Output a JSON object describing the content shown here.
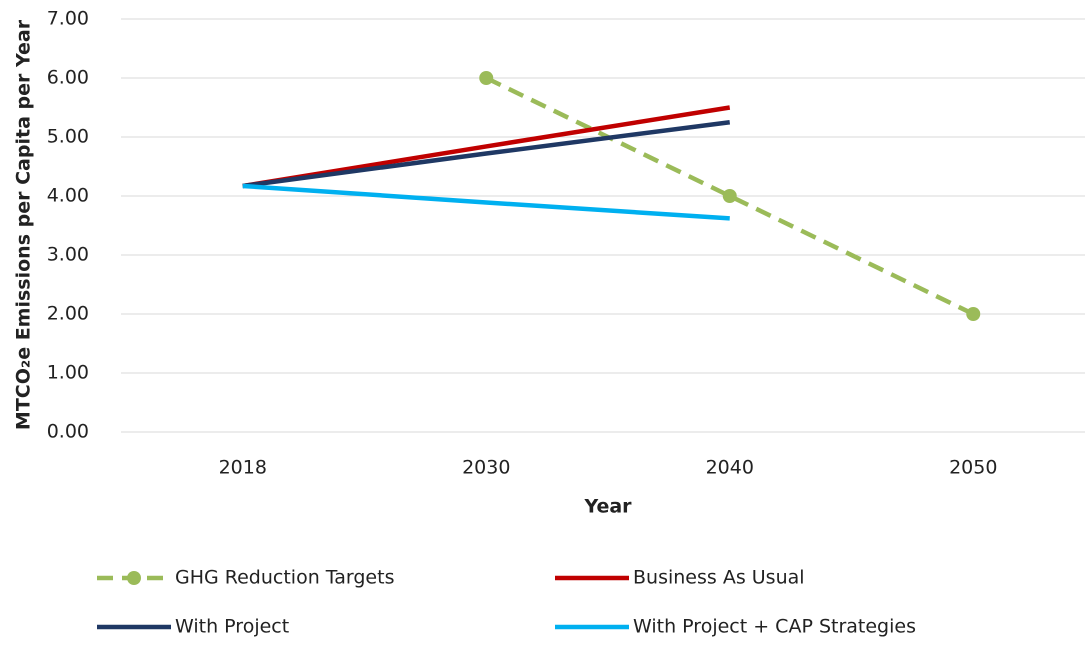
{
  "chart_data": {
    "type": "line",
    "x_label": "Year",
    "y_label": "MTCO₂e Emissions per Capita per Year",
    "categories": [
      "2018",
      "2030",
      "2040",
      "2050"
    ],
    "series": [
      {
        "name": "GHG Reduction Targets",
        "color": "#9bbb59",
        "dashed": true,
        "markers": true,
        "values": [
          null,
          6.0,
          4.0,
          2.0
        ]
      },
      {
        "name": "Business As Usual",
        "color": "#c00000",
        "values": [
          4.17,
          4.84,
          5.5,
          null
        ]
      },
      {
        "name": "With Project",
        "color": "#1f3864",
        "values": [
          4.17,
          4.72,
          5.25,
          null
        ]
      },
      {
        "name": "With Project + CAP Strategies",
        "color": "#00b0f0",
        "values": [
          4.17,
          3.89,
          3.62,
          null
        ]
      }
    ],
    "ylim": [
      0,
      7
    ],
    "yticks": [
      {
        "value": 0,
        "label": "0.00"
      },
      {
        "value": 1,
        "label": "1.00"
      },
      {
        "value": 2,
        "label": "2.00"
      },
      {
        "value": 3,
        "label": "3.00"
      },
      {
        "value": 4,
        "label": "4.00"
      },
      {
        "value": 5,
        "label": "5.00"
      },
      {
        "value": 6,
        "label": "6.00"
      },
      {
        "value": 7,
        "label": "7.00"
      }
    ],
    "grid": true
  }
}
